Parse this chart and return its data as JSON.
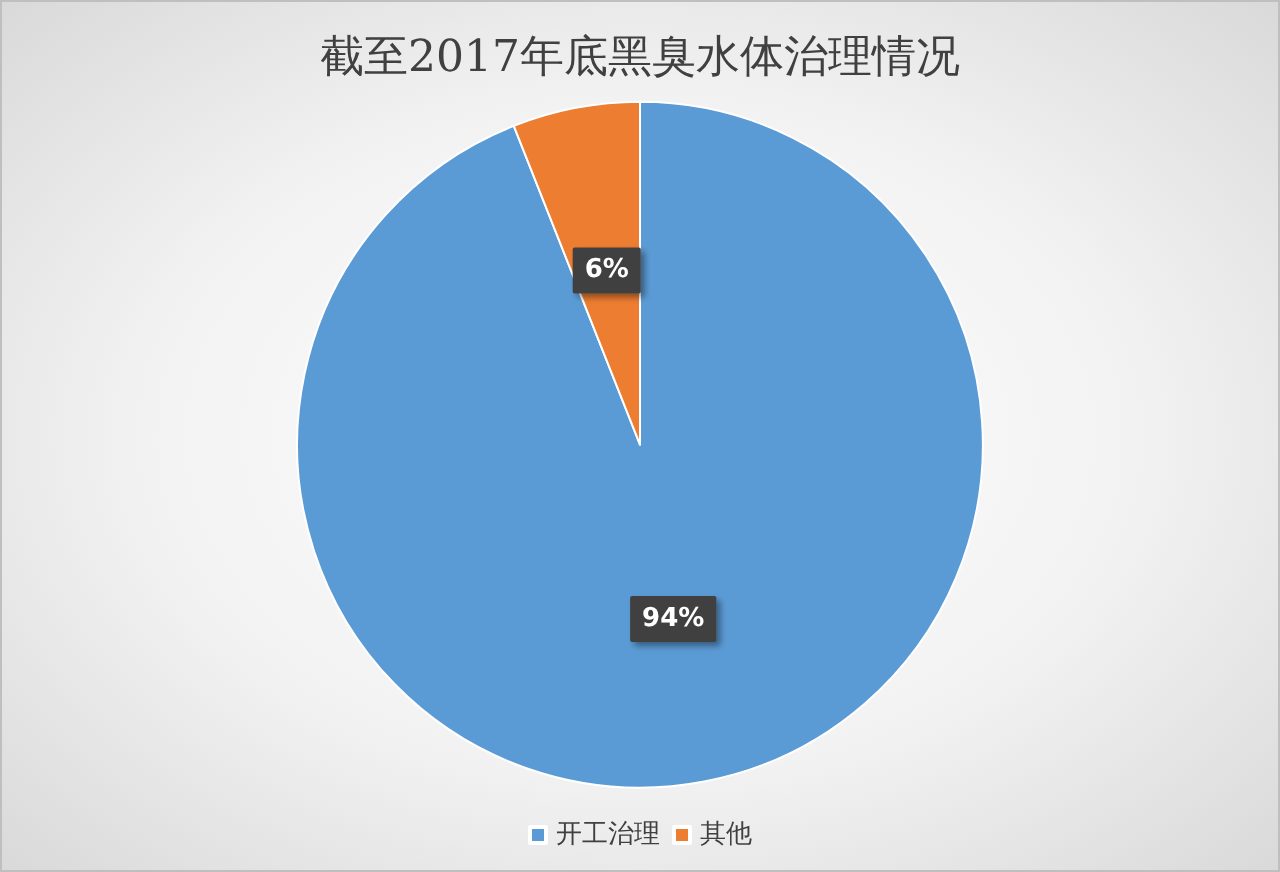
{
  "chart_data": {
    "type": "pie",
    "title": "截至2017年底黑臭水体治理情况",
    "categories": [
      "开工治理",
      "其他"
    ],
    "values": [
      94,
      6
    ],
    "colors": [
      "#5b9bd5",
      "#ed7d31"
    ],
    "value_labels": [
      "94%",
      "6%"
    ],
    "legend": "bottom"
  }
}
